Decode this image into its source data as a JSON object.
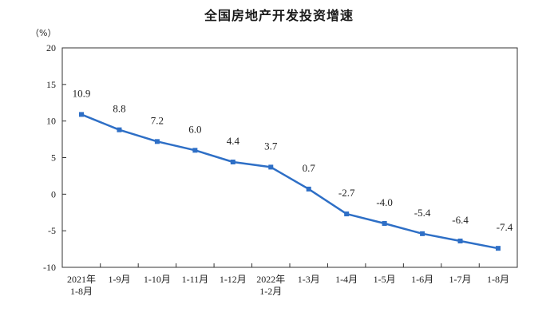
{
  "chart_data": {
    "type": "line",
    "title": "全国房地产开发投资增速",
    "unit": "（%）",
    "categories": [
      [
        "2021年",
        "1-8月"
      ],
      [
        "1-9月"
      ],
      [
        "1-10月"
      ],
      [
        "1-11月"
      ],
      [
        "1-12月"
      ],
      [
        "2022年",
        "1-2月"
      ],
      [
        "1-3月"
      ],
      [
        "1-4月"
      ],
      [
        "1-5月"
      ],
      [
        "1-6月"
      ],
      [
        "1-7月"
      ],
      [
        "1-8月"
      ]
    ],
    "values": [
      10.9,
      8.8,
      7.2,
      6.0,
      4.4,
      3.7,
      0.7,
      -2.7,
      -4.0,
      -5.4,
      -6.4,
      -7.4
    ],
    "value_labels": [
      "10.9",
      "8.8",
      "7.2",
      "6.0",
      "4.4",
      "3.7",
      "0.7",
      "-2.7",
      "-4.0",
      "-5.4",
      "-6.4",
      "-7.4"
    ],
    "ylim": [
      -10,
      20
    ],
    "yticks": [
      20,
      15,
      10,
      5,
      0,
      -5,
      -10
    ],
    "ytick_labels": [
      "20",
      "15",
      "10",
      "5",
      "0",
      "-5",
      "-10"
    ],
    "line_color": "#2e6fc6",
    "grid": false,
    "legend": "none"
  }
}
